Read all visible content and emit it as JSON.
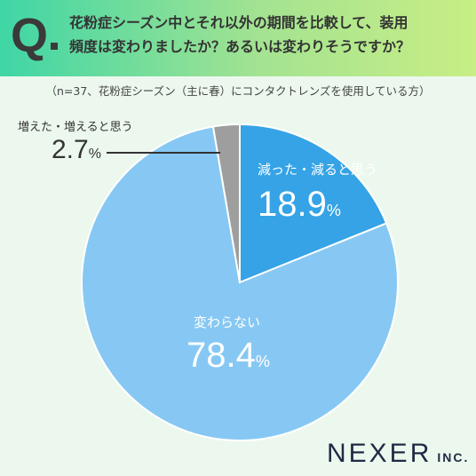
{
  "header": {
    "q_letter": "Q",
    "question_line1": "花粉症シーズン中とそれ以外の期間を比較して、装用",
    "question_line2": "頻度は変わりましたか？あるいは変わりそうですか？"
  },
  "note": "（n=37、花粉症シーズン（主に春）にコンタクトレンズを使用している方）",
  "colors": {
    "decrease": "#35a3e6",
    "no_change": "#86c8f3",
    "increase": "#9e9e9e"
  },
  "chart_data": {
    "type": "pie",
    "start": "12 o'clock, clockwise",
    "slices": [
      {
        "label": "減った・減ると思う",
        "value": 18.9,
        "unit": "%",
        "color": "#35a3e6"
      },
      {
        "label": "変わらない",
        "value": 78.4,
        "unit": "%",
        "color": "#86c8f3"
      },
      {
        "label": "増えた・増えると思う",
        "value": 2.7,
        "unit": "%",
        "color": "#9e9e9e"
      }
    ]
  },
  "logo": {
    "main": "NEXER",
    "suffix": "INC."
  }
}
